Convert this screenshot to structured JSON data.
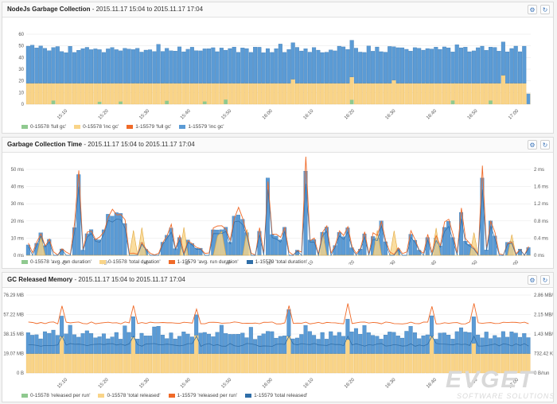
{
  "colors": {
    "blue": "#5b9bd5",
    "blue_dark": "#2f6ea8",
    "yellow": "#f9d488",
    "yellow_dark": "#e0a63a",
    "orange": "#f06a28",
    "green": "#8fc98f"
  },
  "icons": {
    "settings": "gear-icon",
    "refresh": "refresh-icon"
  },
  "panels": [
    {
      "title": "NodeJs Garbage Collection",
      "subtitle": " - 2015.11.17 15:04 to 2015.11.17 17:04",
      "legend": [
        {
          "label": "0-15578 'full gc'",
          "color": "#8fc98f"
        },
        {
          "label": "0-15578 'inc gc'",
          "color": "#f9d488"
        },
        {
          "label": "1-15579 'full gc'",
          "color": "#f06a28"
        },
        {
          "label": "1-15579 'inc gc'",
          "color": "#5b9bd5"
        }
      ]
    },
    {
      "title": "Garbage Collection Time",
      "subtitle": " - 2015.11.17 15:04 to 2015.11.17 17:04",
      "legend": [
        {
          "label": "0-15578 'avg. run duration'",
          "color": "#8fc98f"
        },
        {
          "label": "0-15578 'total duration'",
          "color": "#f9d488"
        },
        {
          "label": "1-15579 'avg. run duration'",
          "color": "#f06a28"
        },
        {
          "label": "1-15579 'total duration'",
          "color": "#2f6ea8"
        }
      ]
    },
    {
      "title": "GC Released Memory",
      "subtitle": " - 2015.11.17 15:04 to 2015.11.17 17:04",
      "legend": [
        {
          "label": "0-15578 'released per run'",
          "color": "#8fc98f"
        },
        {
          "label": "0-15578 'total released'",
          "color": "#f9d488"
        },
        {
          "label": "1-15579 'released per run'",
          "color": "#f06a28"
        },
        {
          "label": "1-15579 'total released'",
          "color": "#2f6ea8"
        }
      ]
    }
  ],
  "watermark": {
    "logo": "EVGET",
    "tagline": "SOFTWARE SOLUTIONS"
  },
  "chart_data": [
    {
      "type": "bar",
      "title": "NodeJs Garbage Collection",
      "x_ticks": [
        "15:10",
        "15:20",
        "15:30",
        "15:40",
        "15:50",
        "16:00",
        "16:10",
        "16:20",
        "16:30",
        "16:40",
        "16:50",
        "17:00"
      ],
      "y_ticks": [
        "0",
        "10",
        "20",
        "30",
        "40",
        "50",
        "60"
      ],
      "ylim": [
        0,
        60
      ],
      "stacked": true,
      "bar_count": 120,
      "series_approx": [
        {
          "name": "0-15578 'full gc'",
          "typical": 0,
          "occasional": 3
        },
        {
          "name": "0-15578 'inc gc'",
          "typical": 18,
          "occasional_peak": 25
        },
        {
          "name": "1-15579 'full gc'",
          "typical": 0
        },
        {
          "name": "1-15579 'inc gc'",
          "typical": 30,
          "range": [
            25,
            35
          ]
        }
      ],
      "totals_range": [
        44,
        53
      ]
    },
    {
      "type": "bar+line",
      "title": "Garbage Collection Time",
      "x_ticks": [
        "15:10",
        "15:20",
        "15:30",
        "15:40",
        "15:50",
        "16:00",
        "16:10",
        "16:20",
        "16:30",
        "16:40",
        "16:50",
        "17:00"
      ],
      "y_ticks_left": [
        "0 ms",
        "10 ms",
        "20 ms",
        "30 ms",
        "40 ms",
        "50 ms"
      ],
      "y_ticks_right": [
        "0 ms",
        "0.4 ms",
        "0.8 ms",
        "1.2 ms",
        "1.6 ms",
        "2 ms"
      ],
      "ylim_left": [
        0,
        50
      ],
      "ylim_right": [
        0,
        2
      ],
      "bar_count": 120,
      "peaks_ms": [
        47,
        30,
        25,
        38,
        45,
        49,
        40,
        45,
        25
      ]
    },
    {
      "type": "bar+line",
      "title": "GC Released Memory",
      "x_ticks": [
        "15:10",
        "15:20",
        "15:30",
        "15:40",
        "15:50",
        "16:00",
        "16:10",
        "16:20",
        "16:30",
        "16:40",
        "16:50",
        "17:00"
      ],
      "y_ticks_left": [
        "0 B",
        "19.07 MB",
        "38.15 MB",
        "57.22 MB",
        "76.29 MB"
      ],
      "y_ticks_right": [
        "0 B/run",
        "732.42 KB/run",
        "1.43 MB/run",
        "2.15 MB/run",
        "2.86 MB/run"
      ],
      "ylim_left_mb": [
        0,
        76.29
      ],
      "bar_count": 120,
      "series_approx": [
        {
          "name": "0-15578 'total released'",
          "typical_mb": 19
        },
        {
          "name": "1-15579 'total released'",
          "typical_mb": 20
        },
        {
          "name": "1-15579 'released per run'",
          "typical_mb_per_run": 1.7
        },
        {
          "name": "0-15578 'released per run'",
          "typical_kb_per_run": 500
        }
      ]
    }
  ]
}
